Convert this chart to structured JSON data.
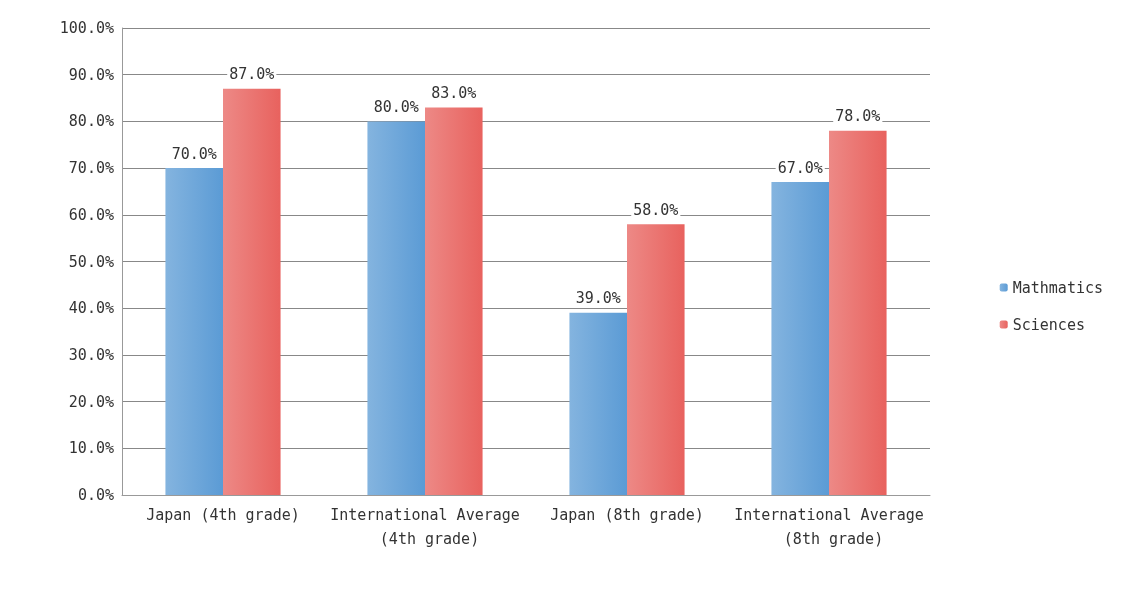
{
  "chart_data": {
    "type": "bar",
    "categories": [
      "Japan (4th grade)",
      "International Average (4th grade)",
      "Japan (8th grade)",
      "International Average (8th grade)"
    ],
    "series": [
      {
        "name": "Mathmatics",
        "color": "#5b9bd5",
        "values": [
          70,
          80,
          39,
          67
        ],
        "value_labels": [
          "70.0%",
          "80.0%",
          "39.0%",
          "67.0%"
        ]
      },
      {
        "name": "Sciences",
        "color": "#e8625e",
        "values": [
          87,
          83,
          58,
          78
        ],
        "value_labels": [
          "87.0%",
          "83.0%",
          "58.0%",
          "78.0%"
        ]
      }
    ],
    "ylim": [
      0,
      100
    ],
    "yticks": [
      {
        "value": 0,
        "label": "0.0%"
      },
      {
        "value": 10,
        "label": "10.0%"
      },
      {
        "value": 20,
        "label": "20.0%"
      },
      {
        "value": 30,
        "label": "30.0%"
      },
      {
        "value": 40,
        "label": "40.0%"
      },
      {
        "value": 50,
        "label": "50.0%"
      },
      {
        "value": 60,
        "label": "60.0%"
      },
      {
        "value": 70,
        "label": "70.0%"
      },
      {
        "value": 80,
        "label": "80.0%"
      },
      {
        "value": 90,
        "label": "90.0%"
      },
      {
        "value": 100,
        "label": "100.0%"
      }
    ],
    "grid": "y",
    "legend": "right"
  }
}
